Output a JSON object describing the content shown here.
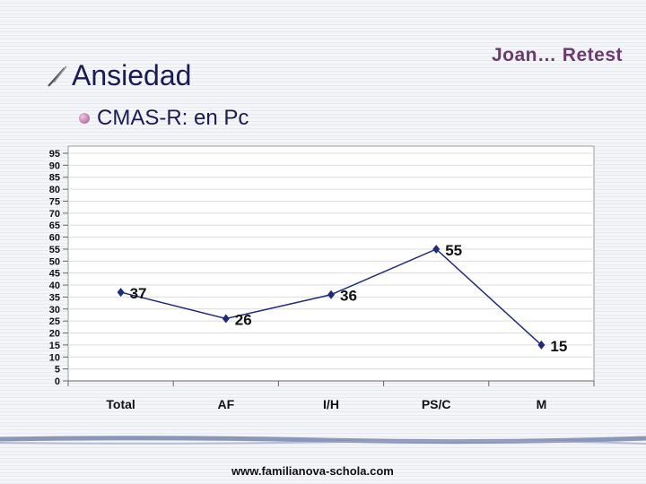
{
  "header": {
    "name": "Joan… Retest"
  },
  "slide": {
    "title": "Ansiedad",
    "bullet": "CMAS-R: en Pc"
  },
  "footer": {
    "url": "www.familianova-schola.com"
  },
  "colors": {
    "line": "#1f2a7a",
    "title": "#1a1a55",
    "header": "#6b3b6e"
  },
  "chart_data": {
    "type": "line",
    "categories": [
      "Total",
      "AF",
      "I/H",
      "PS/C",
      "M"
    ],
    "series": [
      {
        "values": [
          37,
          26,
          36,
          55,
          15
        ]
      }
    ],
    "ylim": [
      0,
      95
    ],
    "yticks": [
      0,
      5,
      10,
      15,
      20,
      25,
      30,
      35,
      40,
      45,
      50,
      55,
      60,
      65,
      70,
      75,
      80,
      85,
      90,
      95
    ],
    "grid": true,
    "legend": "none"
  }
}
